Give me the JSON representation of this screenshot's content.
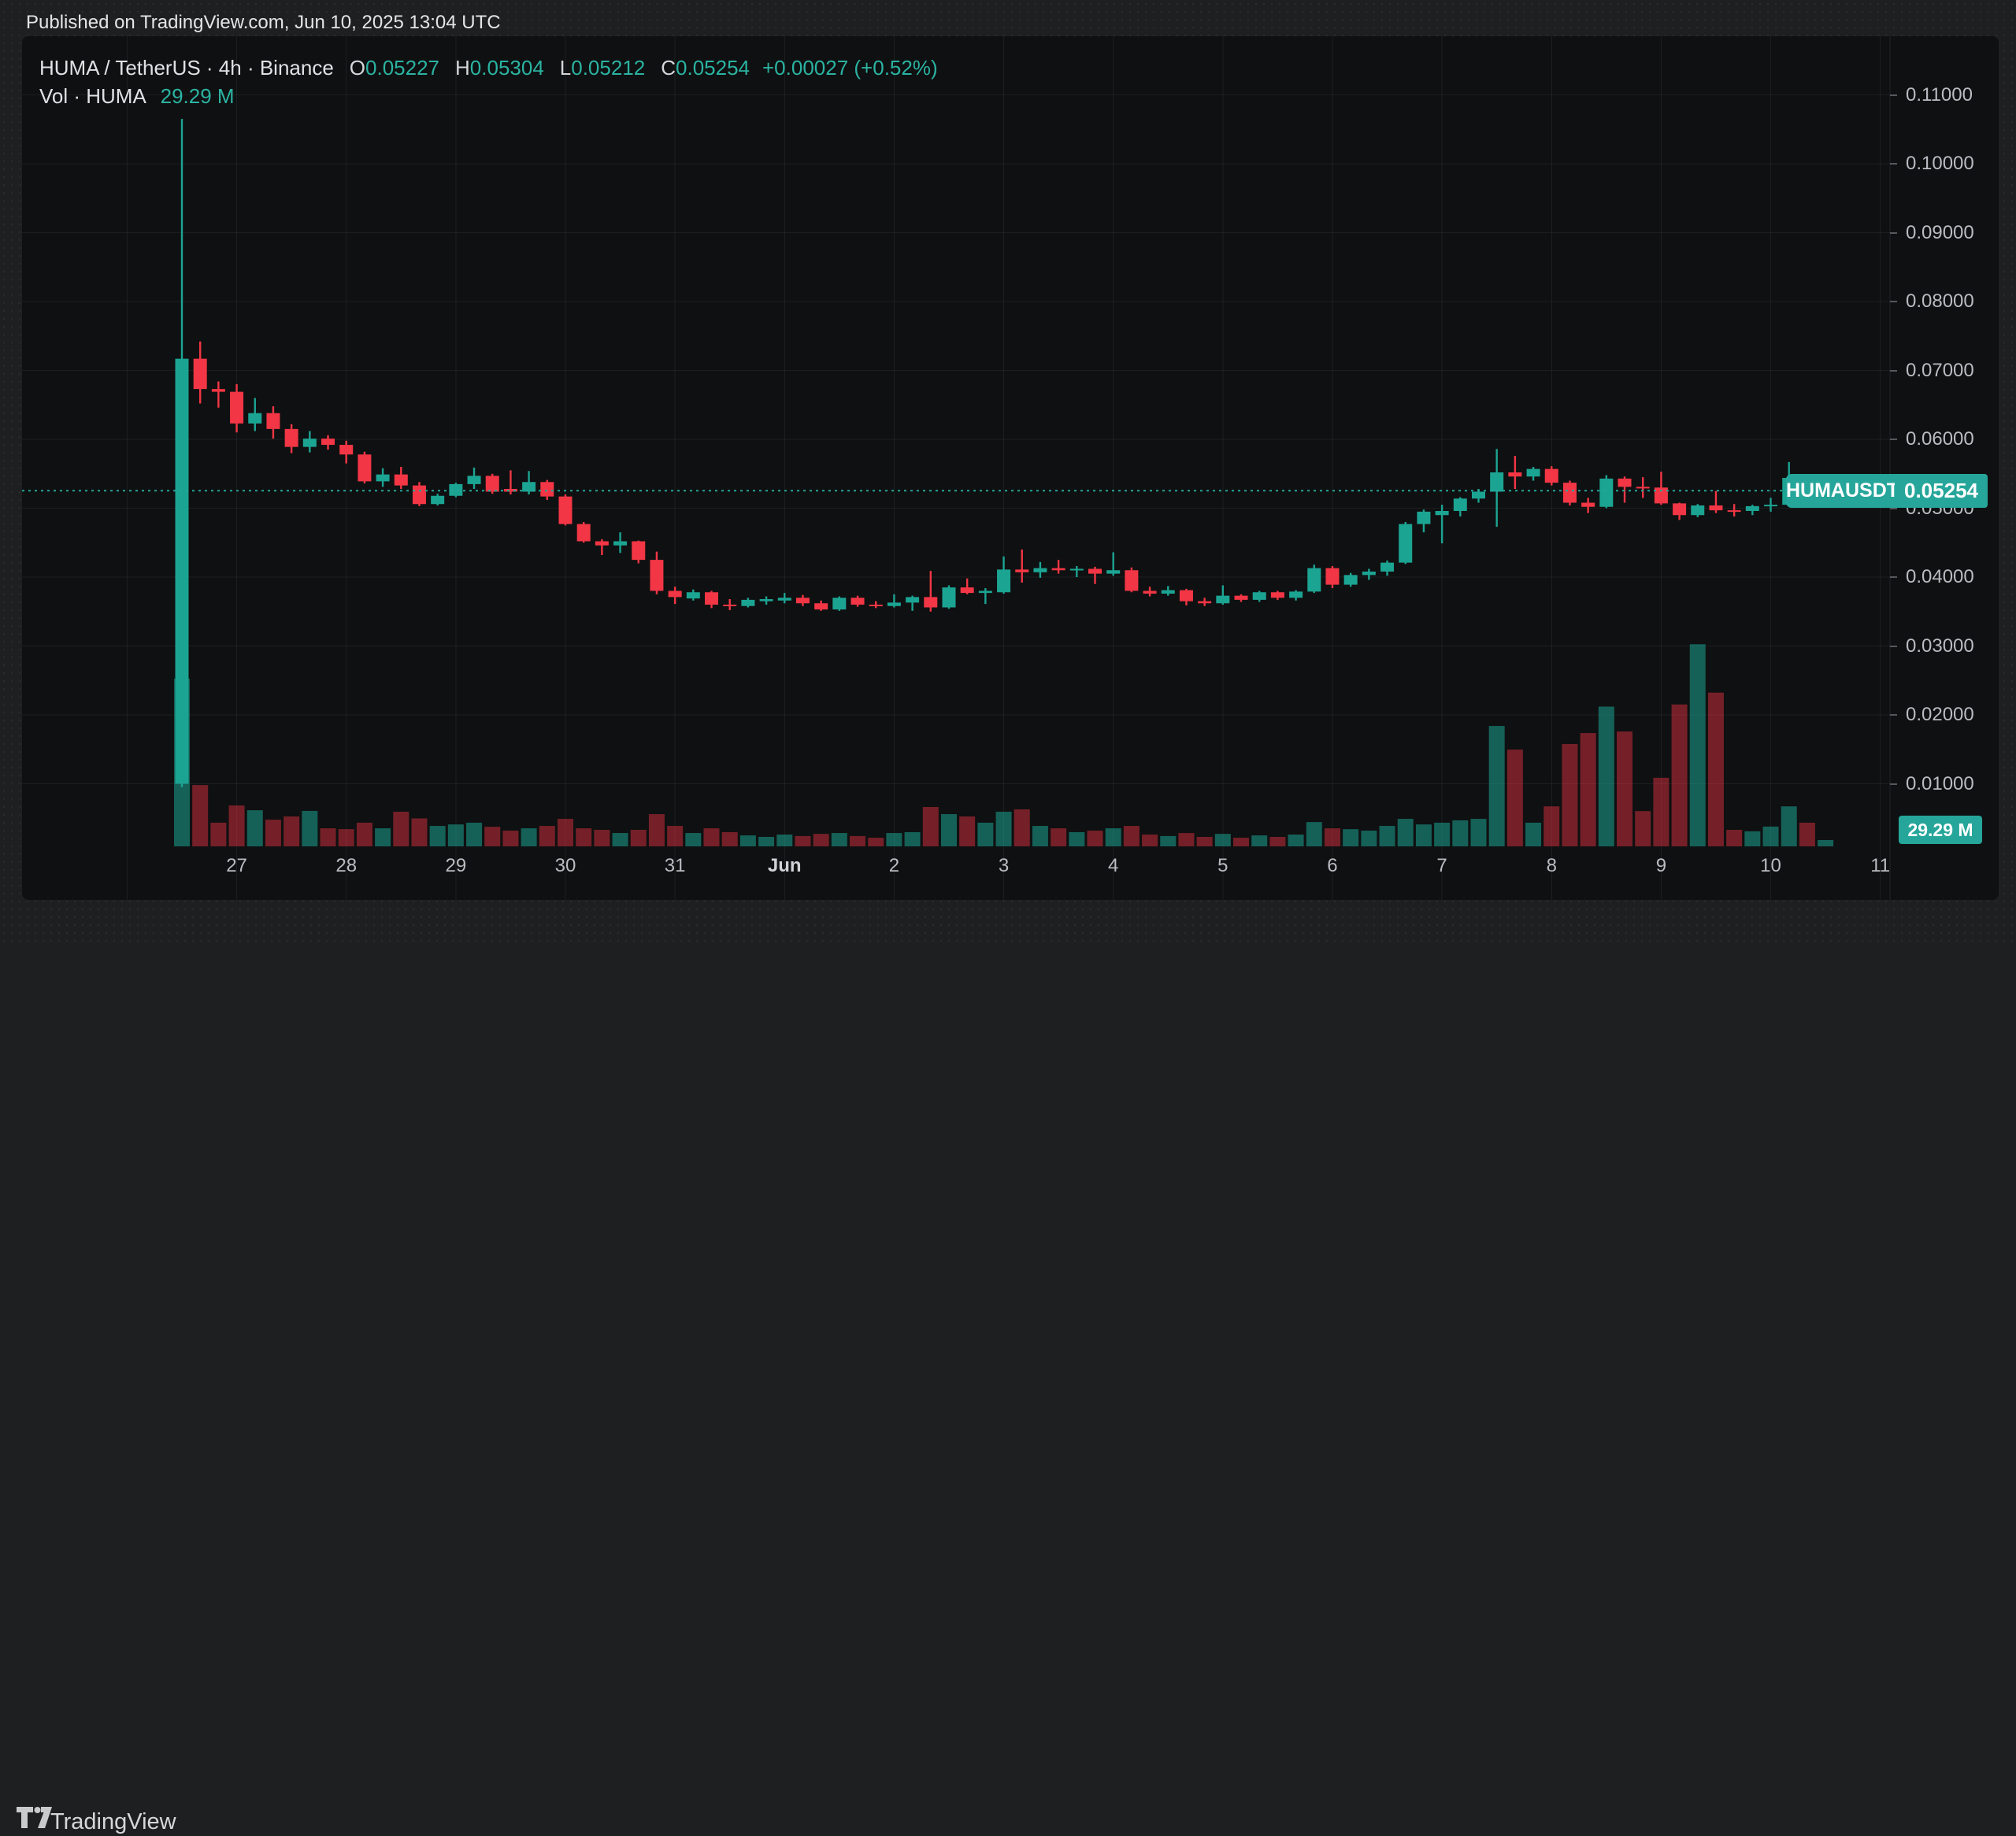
{
  "publish_bar": {
    "text": "Published on TradingView.com, Jun 10, 2025 13:04 UTC"
  },
  "legend": {
    "symbol_title": "HUMA / TetherUS · 4h · Binance",
    "ohlc": {
      "o_label": "O",
      "o": "0.05227",
      "h_label": "H",
      "h": "0.05304",
      "l_label": "L",
      "l": "0.05212",
      "c_label": "C",
      "c": "0.05254",
      "change": "+0.00027 (+0.52%)"
    },
    "volume_row": {
      "label": "Vol · HUMA",
      "value": "29.29 M"
    }
  },
  "symbol_label": {
    "text": "HUMAUSDT"
  },
  "price_axis": {
    "ticks": [
      {
        "label": "0.11000",
        "value": 0.11
      },
      {
        "label": "0.10000",
        "value": 0.1
      },
      {
        "label": "0.09000",
        "value": 0.09
      },
      {
        "label": "0.08000",
        "value": 0.08
      },
      {
        "label": "0.07000",
        "value": 0.07
      },
      {
        "label": "0.06000",
        "value": 0.06
      },
      {
        "label": "0.05000",
        "value": 0.05
      },
      {
        "label": "0.04000",
        "value": 0.04
      },
      {
        "label": "0.03000",
        "value": 0.03
      },
      {
        "label": "0.02000",
        "value": 0.02
      },
      {
        "label": "0.01000",
        "value": 0.01
      }
    ],
    "price_tag": {
      "text": "0.05254",
      "value": 0.05254
    },
    "volume_tag": "29.29 M"
  },
  "time_axis": {
    "ticks": [
      {
        "label": "",
        "index": -3
      },
      {
        "label": "27",
        "index": 3
      },
      {
        "label": "28",
        "index": 9
      },
      {
        "label": "29",
        "index": 15
      },
      {
        "label": "30",
        "index": 21
      },
      {
        "label": "31",
        "index": 27
      },
      {
        "label": "Jun",
        "index": 33,
        "month": true
      },
      {
        "label": "2",
        "index": 39
      },
      {
        "label": "3",
        "index": 45
      },
      {
        "label": "4",
        "index": 51
      },
      {
        "label": "5",
        "index": 57
      },
      {
        "label": "6",
        "index": 63
      },
      {
        "label": "7",
        "index": 69
      },
      {
        "label": "8",
        "index": 75
      },
      {
        "label": "9",
        "index": 81
      },
      {
        "label": "10",
        "index": 87
      },
      {
        "label": "11",
        "index": 93
      }
    ]
  },
  "footer": {
    "brand": "TradingView"
  },
  "colors": {
    "up": "#1ca493",
    "down": "#f23645",
    "up_volume": "rgba(28,164,147,0.55)",
    "down_volume": "rgba(242,54,69,0.45)",
    "accent_teal": "#26a69a",
    "teal_text": "#2bb3a2",
    "axis_text": "#b9bcc2",
    "panel_bg": "#0f1011",
    "surround_bg": "#1e1f21",
    "grid": "rgba(255,255,255,0.06)"
  },
  "chart_data": {
    "type": "candlestick+volume",
    "title": "HUMA / TetherUS · 4h · Binance",
    "symbol": "HUMAUSDT",
    "exchange": "Binance",
    "interval": "4h",
    "current_bar": {
      "open": 0.05227,
      "high": 0.05304,
      "low": 0.05212,
      "close": 0.05254,
      "change": "+0.00027 (+0.52%)",
      "volume_label": "29.29 M"
    },
    "current_price_line": 0.05254,
    "price_axis_tick_values": [
      0.11,
      0.1,
      0.09,
      0.08,
      0.07,
      0.06,
      0.05,
      0.04,
      0.03,
      0.02,
      0.01
    ],
    "visible_price_range": [
      0.0009,
      0.1185
    ],
    "volume_max_visible_millions": 940,
    "legend_position": "top-left",
    "grid": true,
    "columns": [
      "time",
      "open",
      "high",
      "low",
      "close",
      "volume_millions"
    ],
    "candles": [
      [
        "May 26 12:00",
        0.01,
        0.1065,
        0.0095,
        0.0717,
        780
      ],
      [
        "May 26 16:00",
        0.0717,
        0.0742,
        0.0652,
        0.0673,
        285
      ],
      [
        "May 26 20:00",
        0.0673,
        0.0684,
        0.0646,
        0.0669,
        110
      ],
      [
        "May 27 00:00",
        0.0669,
        0.068,
        0.061,
        0.0623,
        190
      ],
      [
        "May 27 04:00",
        0.0623,
        0.066,
        0.0612,
        0.0638,
        168
      ],
      [
        "May 27 08:00",
        0.0638,
        0.0648,
        0.0601,
        0.0615,
        124
      ],
      [
        "May 27 12:00",
        0.0615,
        0.0622,
        0.058,
        0.0589,
        139
      ],
      [
        "May 27 16:00",
        0.0589,
        0.0612,
        0.0581,
        0.0601,
        165
      ],
      [
        "May 27 20:00",
        0.0601,
        0.0606,
        0.0585,
        0.0592,
        84
      ],
      [
        "May 28 00:00",
        0.0592,
        0.0598,
        0.0565,
        0.0578,
        80
      ],
      [
        "May 28 04:00",
        0.0578,
        0.0582,
        0.0536,
        0.0539,
        110
      ],
      [
        "May 28 08:00",
        0.0539,
        0.0558,
        0.0531,
        0.0549,
        84
      ],
      [
        "May 28 12:00",
        0.0549,
        0.056,
        0.0528,
        0.0533,
        161
      ],
      [
        "May 28 16:00",
        0.0533,
        0.0538,
        0.0503,
        0.0506,
        130
      ],
      [
        "May 28 20:00",
        0.0506,
        0.0521,
        0.0504,
        0.0518,
        95
      ],
      [
        "May 29 00:00",
        0.0518,
        0.0537,
        0.0516,
        0.0535,
        102
      ],
      [
        "May 29 04:00",
        0.0535,
        0.0559,
        0.0528,
        0.0547,
        110
      ],
      [
        "May 29 08:00",
        0.0547,
        0.055,
        0.0521,
        0.0524,
        91
      ],
      [
        "May 29 12:00",
        0.0528,
        0.0555,
        0.052,
        0.0524,
        73
      ],
      [
        "May 29 16:00",
        0.0524,
        0.0554,
        0.052,
        0.0538,
        84
      ],
      [
        "May 29 20:00",
        0.0538,
        0.0541,
        0.0512,
        0.0517,
        95
      ],
      [
        "May 30 00:00",
        0.0517,
        0.052,
        0.0475,
        0.0477,
        128
      ],
      [
        "May 30 04:00",
        0.0477,
        0.048,
        0.045,
        0.0452,
        84
      ],
      [
        "May 30 08:00",
        0.0452,
        0.0455,
        0.0432,
        0.0446,
        77
      ],
      [
        "May 30 12:00",
        0.0446,
        0.0465,
        0.0435,
        0.0452,
        62
      ],
      [
        "May 30 16:00",
        0.0452,
        0.0453,
        0.042,
        0.0425,
        77
      ],
      [
        "May 30 20:00",
        0.0425,
        0.0437,
        0.0375,
        0.038,
        150
      ],
      [
        "May 31 00:00",
        0.038,
        0.0386,
        0.0361,
        0.0371,
        95
      ],
      [
        "May 31 04:00",
        0.0369,
        0.0382,
        0.0366,
        0.0378,
        62
      ],
      [
        "May 31 08:00",
        0.0378,
        0.038,
        0.0355,
        0.036,
        84
      ],
      [
        "May 31 12:00",
        0.036,
        0.0368,
        0.0352,
        0.0358,
        66
      ],
      [
        "May 31 16:00",
        0.0358,
        0.037,
        0.0356,
        0.0367,
        51
      ],
      [
        "May 31 20:00",
        0.0365,
        0.0372,
        0.036,
        0.0368,
        44
      ],
      [
        "Jun 1 00:00",
        0.0366,
        0.0377,
        0.0362,
        0.037,
        55
      ],
      [
        "Jun 1 04:00",
        0.037,
        0.0374,
        0.0358,
        0.0362,
        48
      ],
      [
        "Jun 1 08:00",
        0.0362,
        0.0366,
        0.0351,
        0.0353,
        58
      ],
      [
        "Jun 1 12:00",
        0.0353,
        0.0372,
        0.0351,
        0.037,
        62
      ],
      [
        "Jun 1 16:00",
        0.037,
        0.0373,
        0.0357,
        0.036,
        48
      ],
      [
        "Jun 1 20:00",
        0.036,
        0.0365,
        0.0355,
        0.0358,
        40
      ],
      [
        "Jun 2 00:00",
        0.0358,
        0.0375,
        0.0356,
        0.0363,
        62
      ],
      [
        "Jun 2 04:00",
        0.0363,
        0.0373,
        0.0351,
        0.0371,
        66
      ],
      [
        "Jun 2 08:00",
        0.0371,
        0.0409,
        0.035,
        0.0356,
        183
      ],
      [
        "Jun 2 12:00",
        0.0356,
        0.0388,
        0.0354,
        0.0385,
        150
      ],
      [
        "Jun 2 16:00",
        0.0385,
        0.0398,
        0.0375,
        0.0377,
        139
      ],
      [
        "Jun 2 20:00",
        0.0377,
        0.0384,
        0.0361,
        0.038,
        110
      ],
      [
        "Jun 3 00:00",
        0.0378,
        0.043,
        0.0376,
        0.0411,
        161
      ],
      [
        "Jun 3 04:00",
        0.0411,
        0.044,
        0.0392,
        0.0407,
        172
      ],
      [
        "Jun 3 08:00",
        0.0407,
        0.0422,
        0.0399,
        0.0413,
        95
      ],
      [
        "Jun 3 12:00",
        0.0413,
        0.0425,
        0.0405,
        0.041,
        84
      ],
      [
        "Jun 3 16:00",
        0.041,
        0.0416,
        0.04,
        0.0412,
        66
      ],
      [
        "Jun 3 20:00",
        0.0412,
        0.0415,
        0.039,
        0.0405,
        73
      ],
      [
        "Jun 4 00:00",
        0.0405,
        0.0436,
        0.0402,
        0.041,
        84
      ],
      [
        "Jun 4 04:00",
        0.041,
        0.0414,
        0.0378,
        0.038,
        95
      ],
      [
        "Jun 4 08:00",
        0.038,
        0.0386,
        0.0372,
        0.0376,
        55
      ],
      [
        "Jun 4 12:00",
        0.0376,
        0.0387,
        0.0373,
        0.0381,
        48
      ],
      [
        "Jun 4 16:00",
        0.0381,
        0.0383,
        0.0359,
        0.0365,
        62
      ],
      [
        "Jun 4 20:00",
        0.0365,
        0.037,
        0.0358,
        0.0362,
        44
      ],
      [
        "Jun 5 00:00",
        0.0362,
        0.0388,
        0.036,
        0.0373,
        58
      ],
      [
        "Jun 5 04:00",
        0.0373,
        0.0375,
        0.0364,
        0.0367,
        40
      ],
      [
        "Jun 5 08:00",
        0.0367,
        0.038,
        0.0364,
        0.0378,
        51
      ],
      [
        "Jun 5 12:00",
        0.0378,
        0.038,
        0.0367,
        0.037,
        44
      ],
      [
        "Jun 5 16:00",
        0.037,
        0.0381,
        0.0366,
        0.0379,
        55
      ],
      [
        "Jun 5 20:00",
        0.0379,
        0.0418,
        0.0377,
        0.0413,
        113
      ],
      [
        "Jun 6 00:00",
        0.0413,
        0.0416,
        0.0384,
        0.0389,
        84
      ],
      [
        "Jun 6 04:00",
        0.0389,
        0.0406,
        0.0386,
        0.0403,
        80
      ],
      [
        "Jun 6 08:00",
        0.0403,
        0.0412,
        0.0396,
        0.0408,
        73
      ],
      [
        "Jun 6 12:00",
        0.0408,
        0.0424,
        0.0402,
        0.0421,
        95
      ],
      [
        "Jun 6 16:00",
        0.0421,
        0.048,
        0.0419,
        0.0477,
        128
      ],
      [
        "Jun 6 20:00",
        0.0477,
        0.0498,
        0.0465,
        0.0495,
        102
      ],
      [
        "Jun 7 00:00",
        0.049,
        0.0505,
        0.0449,
        0.0496,
        110
      ],
      [
        "Jun 7 04:00",
        0.0496,
        0.0516,
        0.0488,
        0.0514,
        121
      ],
      [
        "Jun 7 08:00",
        0.0514,
        0.0528,
        0.0508,
        0.0524,
        128
      ],
      [
        "Jun 7 12:00",
        0.0524,
        0.0586,
        0.0473,
        0.0552,
        560
      ],
      [
        "Jun 7 16:00",
        0.0552,
        0.0576,
        0.0528,
        0.0546,
        450
      ],
      [
        "Jun 7 20:00",
        0.0546,
        0.056,
        0.054,
        0.0557,
        110
      ],
      [
        "Jun 8 00:00",
        0.0557,
        0.0561,
        0.0533,
        0.0537,
        186
      ],
      [
        "Jun 8 04:00",
        0.0537,
        0.054,
        0.0504,
        0.0508,
        476
      ],
      [
        "Jun 8 08:00",
        0.0508,
        0.0515,
        0.0493,
        0.0502,
        527
      ],
      [
        "Jun 8 12:00",
        0.0502,
        0.0548,
        0.05,
        0.0543,
        650
      ],
      [
        "Jun 8 16:00",
        0.0543,
        0.0546,
        0.0508,
        0.0531,
        534
      ],
      [
        "Jun 8 20:00",
        0.0531,
        0.0545,
        0.0515,
        0.053,
        164
      ],
      [
        "Jun 9 00:00",
        0.053,
        0.0553,
        0.0505,
        0.0507,
        319
      ],
      [
        "Jun 9 04:00",
        0.0507,
        0.0508,
        0.0483,
        0.049,
        660
      ],
      [
        "Jun 9 08:00",
        0.049,
        0.0506,
        0.0487,
        0.0504,
        940
      ],
      [
        "Jun 9 12:00",
        0.0504,
        0.0525,
        0.0493,
        0.0497,
        715
      ],
      [
        "Jun 9 16:00",
        0.0497,
        0.0506,
        0.0488,
        0.0496,
        77
      ],
      [
        "Jun 9 20:00",
        0.0496,
        0.0505,
        0.049,
        0.0503,
        70
      ],
      [
        "Jun 10 00:00",
        0.0503,
        0.0515,
        0.0495,
        0.0505,
        92
      ],
      [
        "Jun 10 04:00",
        0.0505,
        0.0567,
        0.0503,
        0.0544,
        186
      ],
      [
        "Jun 10 08:00",
        0.0544,
        0.0547,
        0.0518,
        0.0523,
        110
      ],
      [
        "Jun 10 12:00",
        0.05227,
        0.05304,
        0.05212,
        0.05254,
        29.29
      ]
    ]
  }
}
